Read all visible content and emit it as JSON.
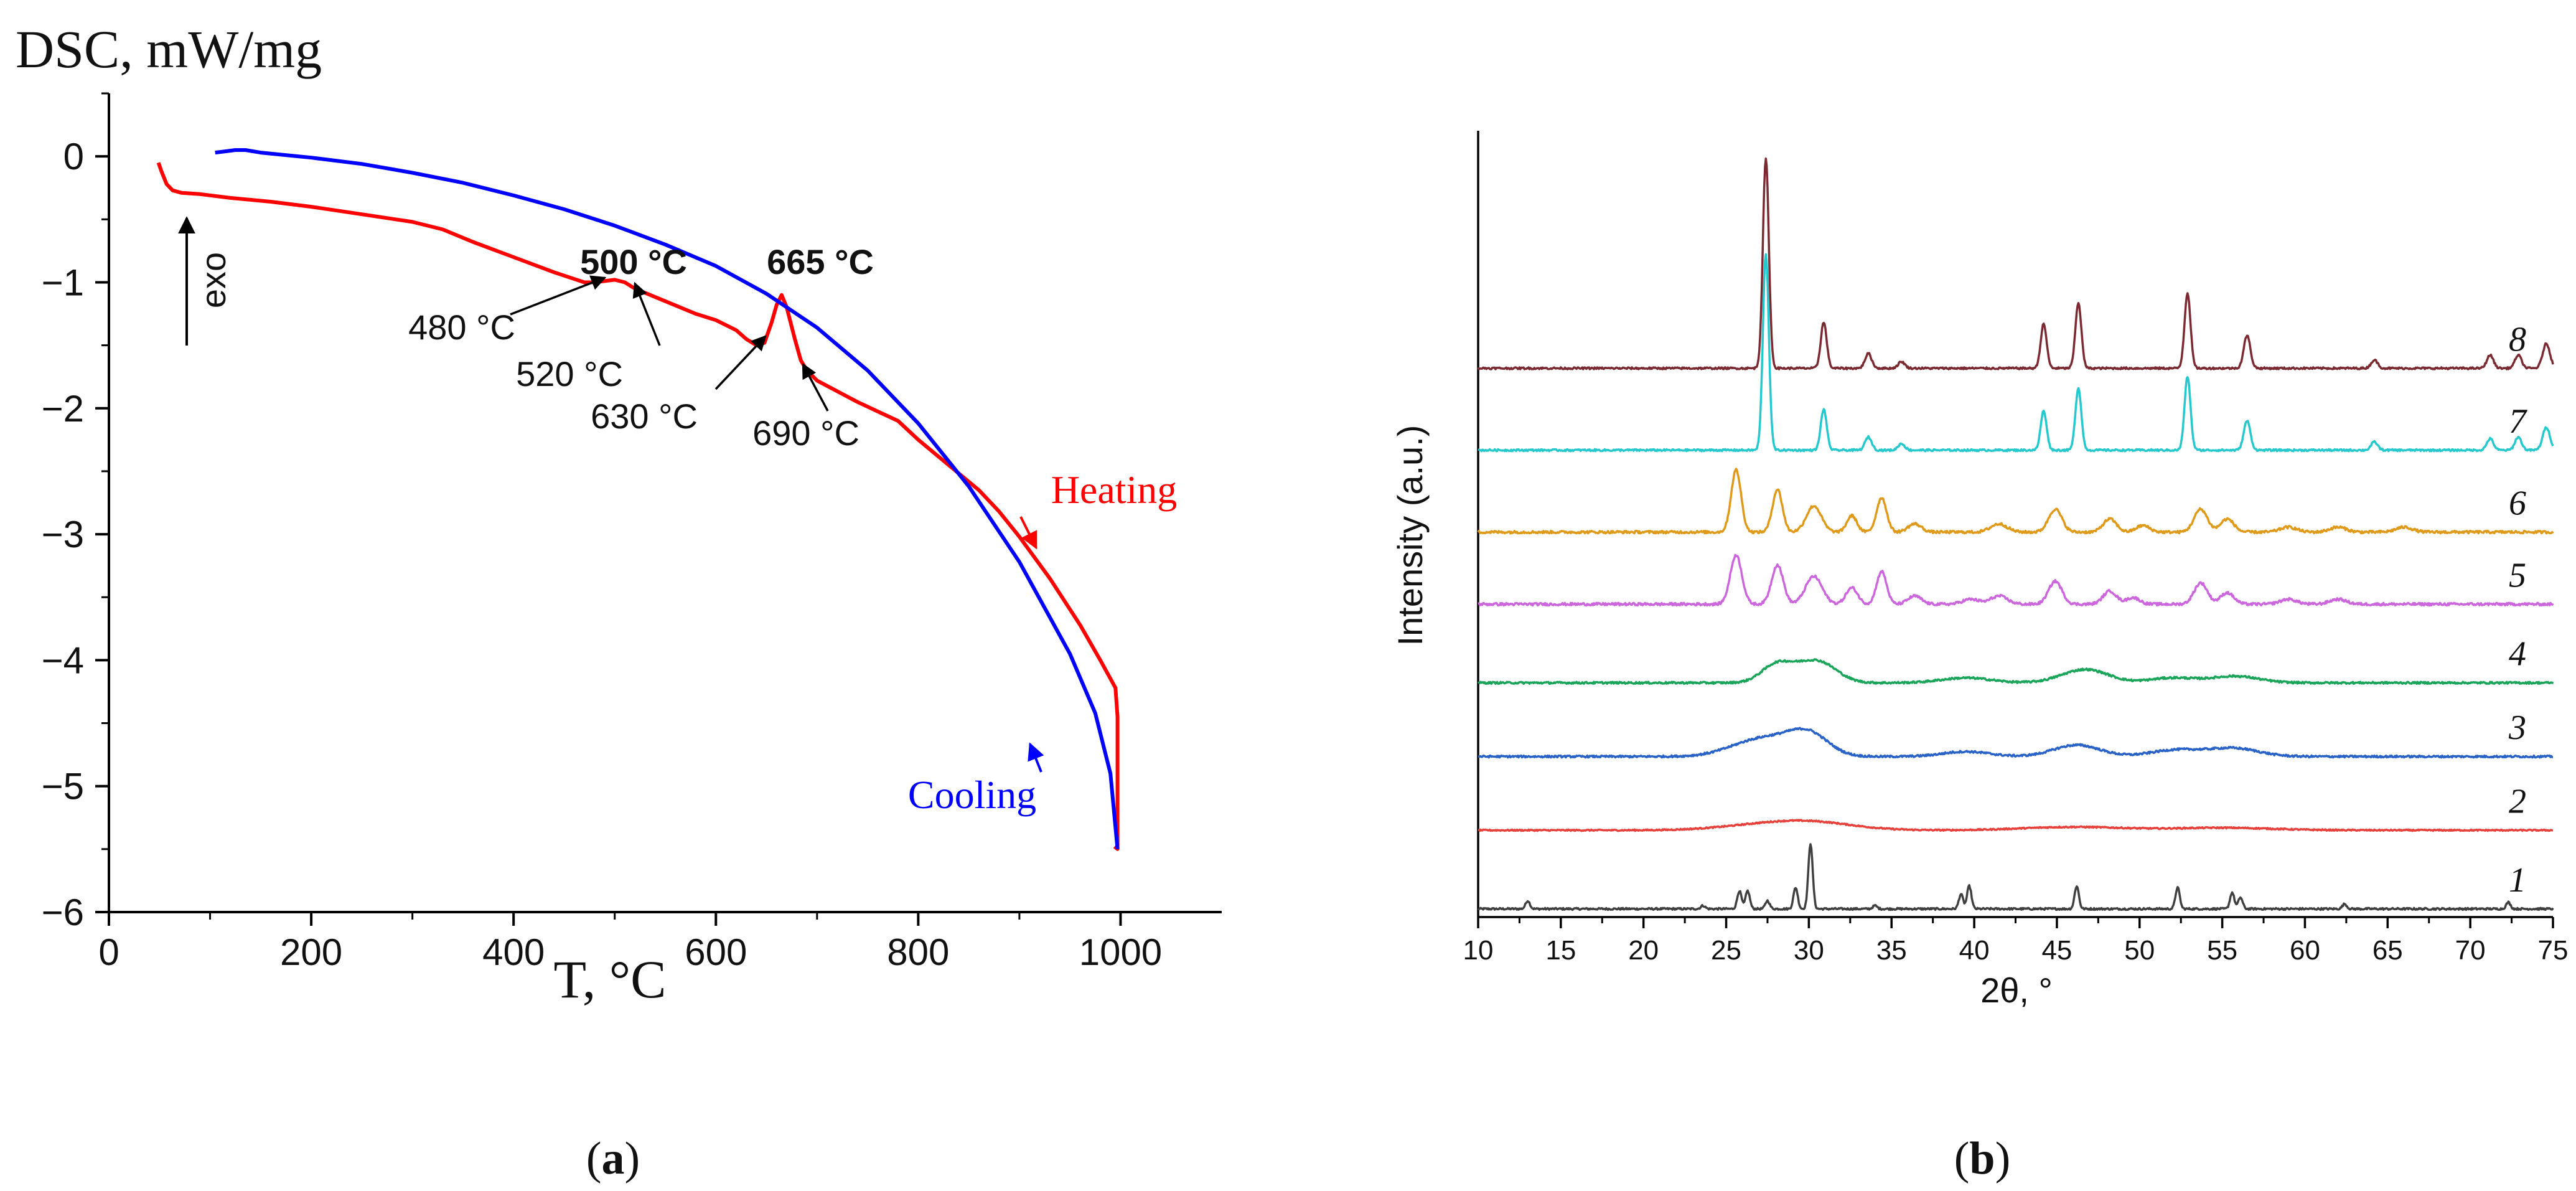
{
  "chart_data": [
    {
      "type": "line",
      "panel_label": "a",
      "title": "",
      "ylabel": "DSC, mW/mg",
      "xlabel": "T, °C",
      "xlim": [
        0,
        1100
      ],
      "ylim": [
        -6,
        0.5
      ],
      "xticks": [
        0,
        200,
        400,
        600,
        800,
        1000
      ],
      "yticks": [
        0,
        -1,
        -2,
        -3,
        -4,
        -5,
        -6
      ],
      "grid": false,
      "exo_label": "exo",
      "series": [
        {
          "name": "Heating",
          "color": "#ff0000",
          "points": [
            [
              49,
              -0.05
            ],
            [
              52,
              -0.12
            ],
            [
              57,
              -0.22
            ],
            [
              63,
              -0.27
            ],
            [
              72,
              -0.29
            ],
            [
              90,
              -0.3
            ],
            [
              120,
              -0.33
            ],
            [
              160,
              -0.36
            ],
            [
              200,
              -0.4
            ],
            [
              250,
              -0.46
            ],
            [
              300,
              -0.52
            ],
            [
              330,
              -0.58
            ],
            [
              360,
              -0.68
            ],
            [
              400,
              -0.8
            ],
            [
              440,
              -0.92
            ],
            [
              470,
              -1.0
            ],
            [
              480,
              -1.0
            ],
            [
              490,
              -0.99
            ],
            [
              500,
              -0.98
            ],
            [
              510,
              -1.0
            ],
            [
              520,
              -1.05
            ],
            [
              550,
              -1.15
            ],
            [
              580,
              -1.25
            ],
            [
              600,
              -1.3
            ],
            [
              620,
              -1.38
            ],
            [
              630,
              -1.45
            ],
            [
              640,
              -1.5
            ],
            [
              648,
              -1.48
            ],
            [
              655,
              -1.32
            ],
            [
              660,
              -1.18
            ],
            [
              665,
              -1.1
            ],
            [
              670,
              -1.2
            ],
            [
              678,
              -1.45
            ],
            [
              684,
              -1.62
            ],
            [
              690,
              -1.7
            ],
            [
              700,
              -1.78
            ],
            [
              740,
              -1.95
            ],
            [
              780,
              -2.1
            ],
            [
              800,
              -2.25
            ],
            [
              830,
              -2.45
            ],
            [
              860,
              -2.65
            ],
            [
              880,
              -2.82
            ],
            [
              900,
              -3.02
            ],
            [
              930,
              -3.35
            ],
            [
              960,
              -3.72
            ],
            [
              980,
              -4.0
            ],
            [
              995,
              -4.22
            ],
            [
              997,
              -4.45
            ],
            [
              997,
              -5.5
            ],
            [
              994,
              -5.48
            ]
          ]
        },
        {
          "name": "Cooling",
          "color": "#0000ff",
          "points": [
            [
              105,
              0.03
            ],
            [
              115,
              0.04
            ],
            [
              125,
              0.05
            ],
            [
              135,
              0.05
            ],
            [
              150,
              0.03
            ],
            [
              200,
              -0.01
            ],
            [
              250,
              -0.06
            ],
            [
              300,
              -0.13
            ],
            [
              350,
              -0.21
            ],
            [
              400,
              -0.31
            ],
            [
              450,
              -0.42
            ],
            [
              500,
              -0.55
            ],
            [
              550,
              -0.7
            ],
            [
              600,
              -0.87
            ],
            [
              650,
              -1.09
            ],
            [
              700,
              -1.36
            ],
            [
              750,
              -1.7
            ],
            [
              800,
              -2.12
            ],
            [
              850,
              -2.62
            ],
            [
              900,
              -3.22
            ],
            [
              950,
              -3.95
            ],
            [
              975,
              -4.42
            ],
            [
              990,
              -4.9
            ],
            [
              997,
              -5.5
            ]
          ]
        }
      ],
      "series_labels": [
        "Heating",
        "Cooling"
      ],
      "annotations": [
        {
          "text": "500 °C",
          "bold": true
        },
        {
          "text": "665 °C",
          "bold": true
        },
        {
          "text": "480 °C"
        },
        {
          "text": "520 °C"
        },
        {
          "text": "630 °C"
        },
        {
          "text": "690 °C"
        }
      ]
    },
    {
      "type": "line",
      "panel_label": "b",
      "title": "",
      "xlabel": "2θ, °",
      "ylabel": "Intensity (a.u.)",
      "xlim": [
        10,
        75
      ],
      "xticks": [
        10,
        15,
        20,
        25,
        30,
        35,
        40,
        45,
        50,
        55,
        60,
        65,
        70,
        75
      ],
      "y_ticks_shown": false,
      "grid": false,
      "series": [
        {
          "curve_label": "1",
          "color": "#404040",
          "baseline": 0.0,
          "noise": 0.006,
          "peaks": [
            [
              13.0,
              0.05
            ],
            [
              23.6,
              0.02
            ],
            [
              25.8,
              0.11
            ],
            [
              26.3,
              0.11
            ],
            [
              27.5,
              0.05
            ],
            [
              29.2,
              0.13
            ],
            [
              30.1,
              0.4
            ],
            [
              34.0,
              0.02
            ],
            [
              39.2,
              0.09
            ],
            [
              39.7,
              0.14
            ],
            [
              46.2,
              0.14
            ],
            [
              52.3,
              0.13
            ],
            [
              55.6,
              0.1
            ],
            [
              56.1,
              0.07
            ],
            [
              62.4,
              0.03
            ],
            [
              72.3,
              0.04
            ]
          ]
        },
        {
          "curve_label": "2",
          "color": "#e8403a",
          "baseline": 0.48,
          "noise": 0.004,
          "peaks": [
            [
              30.0,
              0.05,
              2.6
            ],
            [
              26.5,
              0.02,
              2.5
            ],
            [
              46.0,
              0.02,
              3.0
            ],
            [
              55.0,
              0.015,
              3.0
            ]
          ]
        },
        {
          "curve_label": "3",
          "color": "#2a63c8",
          "baseline": 0.93,
          "noise": 0.006,
          "peaks": [
            [
              26.3,
              0.06,
              1.6
            ],
            [
              28.0,
              0.07,
              1.5
            ],
            [
              30.0,
              0.13,
              1.2
            ],
            [
              39.5,
              0.03,
              1.4
            ],
            [
              46.2,
              0.07,
              1.4
            ],
            [
              52.2,
              0.04,
              1.5
            ],
            [
              55.7,
              0.05,
              1.5
            ]
          ]
        },
        {
          "curve_label": "4",
          "color": "#1aa55a",
          "baseline": 1.38,
          "noise": 0.006,
          "peaks": [
            [
              28.0,
              0.1,
              0.9
            ],
            [
              30.0,
              0.1,
              1.2
            ],
            [
              31.0,
              0.05,
              1.0
            ],
            [
              39.5,
              0.03,
              1.5
            ],
            [
              46.2,
              0.05,
              1.3
            ],
            [
              47.3,
              0.04,
              1.2
            ],
            [
              52.0,
              0.03,
              1.4
            ],
            [
              55.8,
              0.04,
              1.4
            ]
          ]
        },
        {
          "curve_label": "5",
          "color": "#cc66dd",
          "baseline": 1.86,
          "noise": 0.008,
          "peaks": [
            [
              25.6,
              0.3,
              0.35
            ],
            [
              28.1,
              0.24,
              0.35
            ],
            [
              30.3,
              0.17,
              0.5
            ],
            [
              32.6,
              0.1,
              0.35
            ],
            [
              34.4,
              0.2,
              0.3
            ],
            [
              36.4,
              0.05,
              0.4
            ],
            [
              39.8,
              0.03,
              0.5
            ],
            [
              41.5,
              0.05,
              0.5
            ],
            [
              44.9,
              0.14,
              0.4
            ],
            [
              48.2,
              0.08,
              0.4
            ],
            [
              49.6,
              0.04,
              0.4
            ],
            [
              53.7,
              0.13,
              0.4
            ],
            [
              55.3,
              0.07,
              0.4
            ],
            [
              59.0,
              0.03,
              0.5
            ],
            [
              62.0,
              0.03,
              0.5
            ]
          ]
        },
        {
          "curve_label": "6",
          "color": "#e09a1a",
          "baseline": 2.3,
          "noise": 0.008,
          "peaks": [
            [
              25.6,
              0.38,
              0.3
            ],
            [
              28.1,
              0.26,
              0.3
            ],
            [
              30.3,
              0.16,
              0.45
            ],
            [
              32.6,
              0.1,
              0.3
            ],
            [
              34.4,
              0.21,
              0.3
            ],
            [
              36.4,
              0.05,
              0.4
            ],
            [
              41.5,
              0.05,
              0.5
            ],
            [
              44.9,
              0.14,
              0.4
            ],
            [
              48.2,
              0.08,
              0.4
            ],
            [
              50.2,
              0.04,
              0.4
            ],
            [
              53.7,
              0.14,
              0.4
            ],
            [
              55.3,
              0.08,
              0.4
            ],
            [
              59.0,
              0.03,
              0.5
            ],
            [
              62.0,
              0.03,
              0.5
            ],
            [
              66.0,
              0.03,
              0.5
            ]
          ]
        },
        {
          "curve_label": "7",
          "color": "#25c8cc",
          "baseline": 2.8,
          "noise": 0.006,
          "peaks": [
            [
              27.4,
              1.2,
              0.18
            ],
            [
              30.9,
              0.25,
              0.18
            ],
            [
              33.6,
              0.08,
              0.2
            ],
            [
              35.6,
              0.04,
              0.2
            ],
            [
              44.2,
              0.24,
              0.18
            ],
            [
              46.3,
              0.38,
              0.18
            ],
            [
              52.9,
              0.45,
              0.18
            ],
            [
              56.5,
              0.18,
              0.2
            ],
            [
              64.2,
              0.05,
              0.2
            ],
            [
              71.2,
              0.07,
              0.2
            ],
            [
              72.9,
              0.08,
              0.2
            ],
            [
              74.6,
              0.14,
              0.22
            ]
          ]
        },
        {
          "curve_label": "8",
          "color": "#7a2a30",
          "baseline": 3.3,
          "noise": 0.006,
          "peaks": [
            [
              27.4,
              1.28,
              0.18
            ],
            [
              30.9,
              0.28,
              0.18
            ],
            [
              33.6,
              0.09,
              0.2
            ],
            [
              35.6,
              0.04,
              0.2
            ],
            [
              44.2,
              0.27,
              0.18
            ],
            [
              46.3,
              0.4,
              0.18
            ],
            [
              52.9,
              0.46,
              0.18
            ],
            [
              56.5,
              0.2,
              0.2
            ],
            [
              64.2,
              0.05,
              0.2
            ],
            [
              71.2,
              0.08,
              0.2
            ],
            [
              72.9,
              0.08,
              0.2
            ],
            [
              74.6,
              0.15,
              0.22
            ]
          ]
        }
      ]
    }
  ]
}
